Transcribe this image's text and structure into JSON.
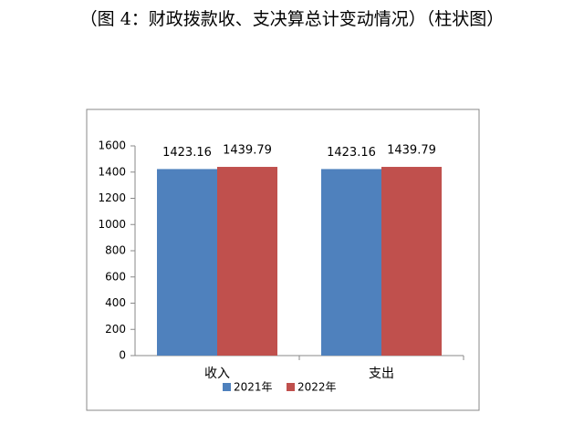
{
  "chart_data": {
    "type": "bar",
    "title": "（图 4：财政拨款收、支决算总计变动情况）（柱状图）",
    "categories": [
      "收入",
      "支出"
    ],
    "series": [
      {
        "name": "2021年",
        "color": "#4f81bd",
        "values": [
          1423.16,
          1423.16
        ]
      },
      {
        "name": "2022年",
        "color": "#c0504d",
        "values": [
          1439.79,
          1439.79
        ]
      }
    ],
    "ylim": [
      0,
      1600
    ],
    "yticks": [
      0,
      200,
      400,
      600,
      800,
      1000,
      1200,
      1400,
      1600
    ],
    "grid": false,
    "legend": "bottom"
  }
}
